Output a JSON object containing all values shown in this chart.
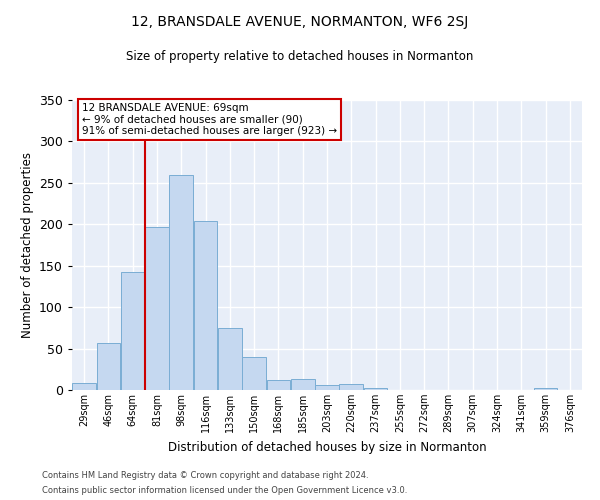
{
  "title": "12, BRANSDALE AVENUE, NORMANTON, WF6 2SJ",
  "subtitle": "Size of property relative to detached houses in Normanton",
  "xlabel": "Distribution of detached houses by size in Normanton",
  "ylabel": "Number of detached properties",
  "bar_color": "#c5d8f0",
  "bar_edge_color": "#7aadd4",
  "background_color": "#e8eef8",
  "grid_color": "#ffffff",
  "vline_x": 2,
  "vline_color": "#cc0000",
  "annotation_text": "12 BRANSDALE AVENUE: 69sqm\n← 9% of detached houses are smaller (90)\n91% of semi-detached houses are larger (923) →",
  "annotation_box_color": "#ffffff",
  "annotation_box_edge": "#cc0000",
  "bin_labels": [
    "29sqm",
    "46sqm",
    "64sqm",
    "81sqm",
    "98sqm",
    "116sqm",
    "133sqm",
    "150sqm",
    "168sqm",
    "185sqm",
    "203sqm",
    "220sqm",
    "237sqm",
    "255sqm",
    "272sqm",
    "289sqm",
    "307sqm",
    "324sqm",
    "341sqm",
    "359sqm",
    "376sqm"
  ],
  "bar_heights": [
    9,
    57,
    143,
    197,
    260,
    204,
    75,
    40,
    12,
    13,
    6,
    7,
    3,
    0,
    0,
    0,
    0,
    0,
    0,
    3,
    0
  ],
  "ylim": [
    0,
    350
  ],
  "yticks": [
    0,
    50,
    100,
    150,
    200,
    250,
    300,
    350
  ],
  "footer1": "Contains HM Land Registry data © Crown copyright and database right 2024.",
  "footer2": "Contains public sector information licensed under the Open Government Licence v3.0."
}
